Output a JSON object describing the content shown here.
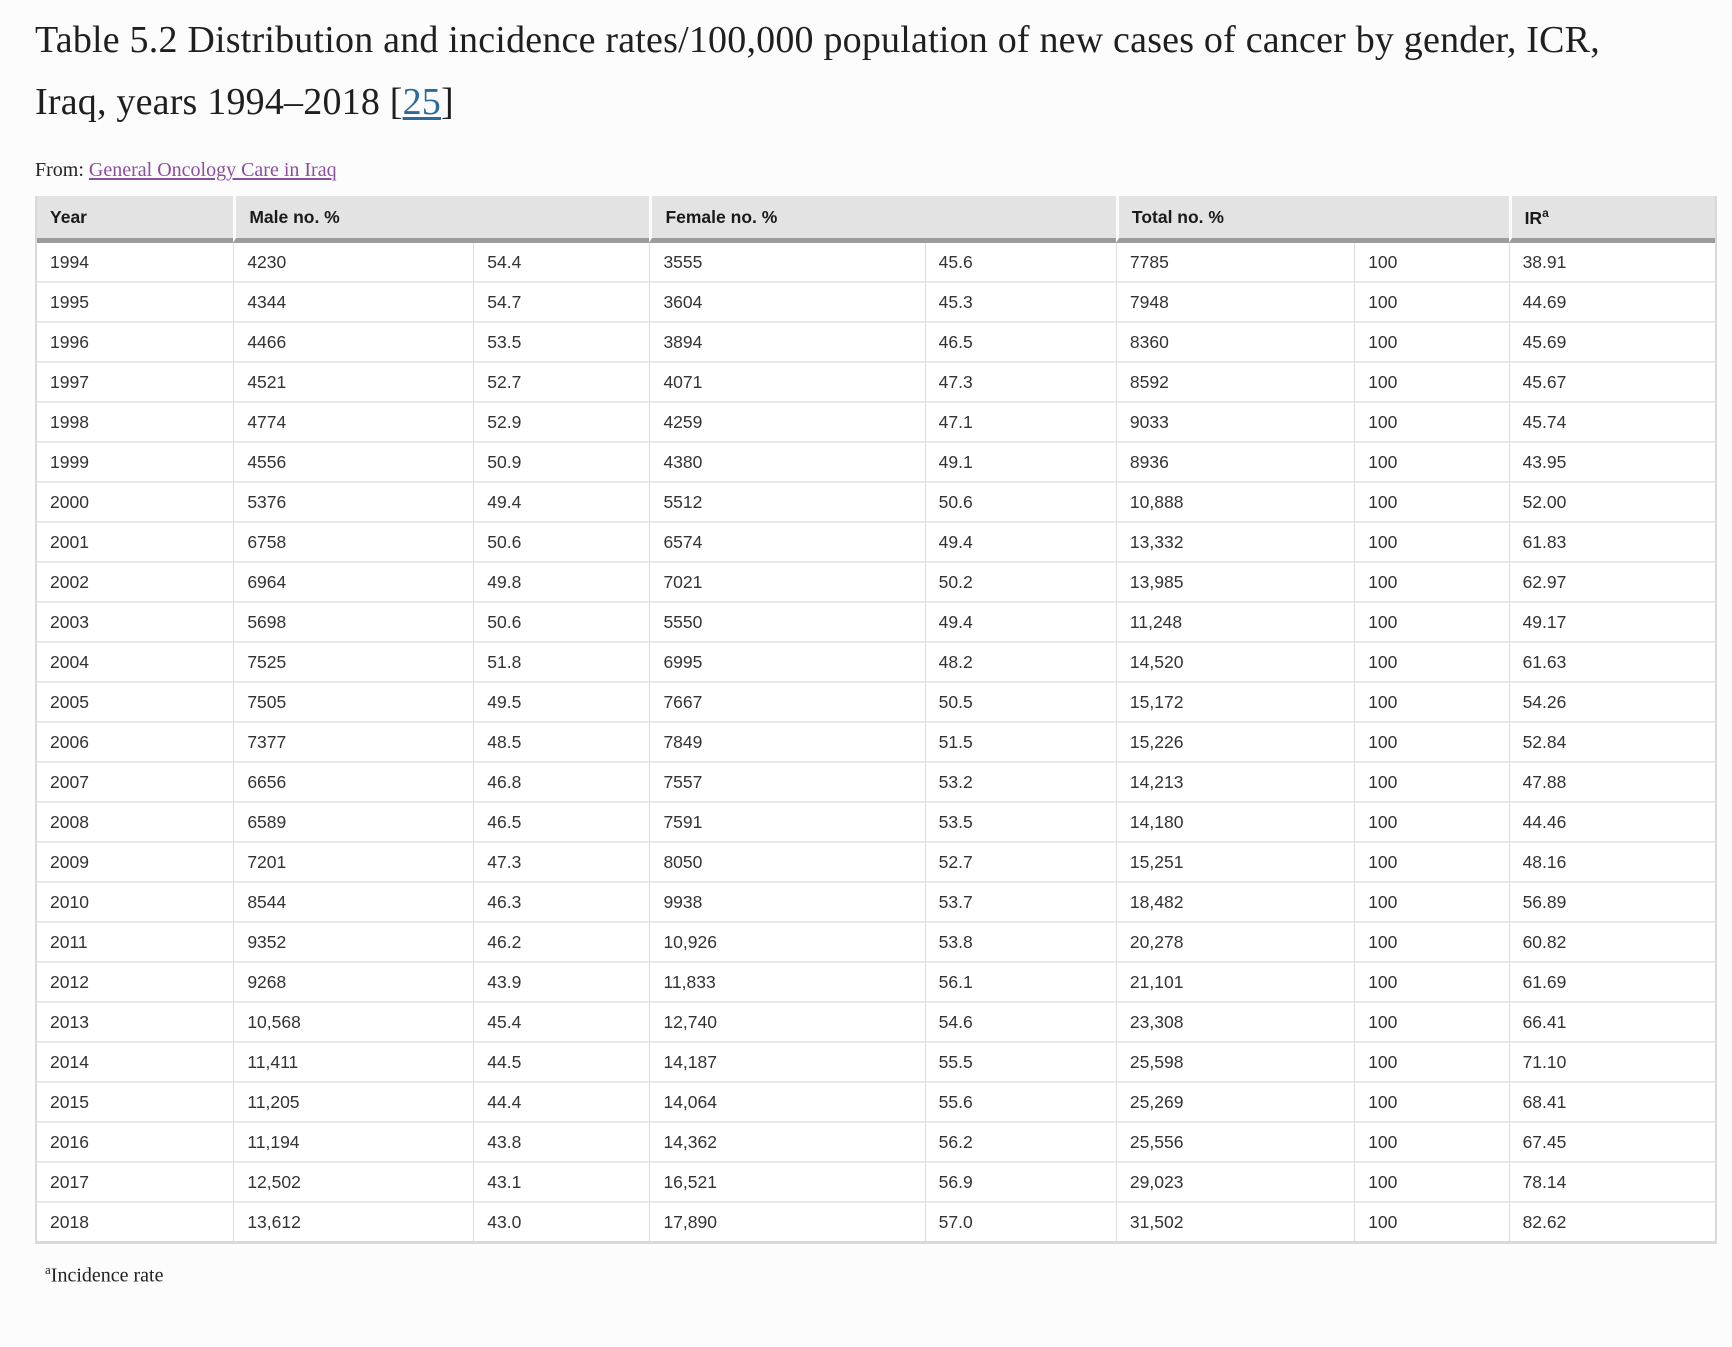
{
  "title": {
    "main": "Table 5.2 Distribution and incidence rates/100,000 population of new cases of cancer by gender, ICR, Iraq, years 1994–2018 ",
    "bracket_open": "[",
    "reference": "25",
    "bracket_close": "]"
  },
  "source": {
    "from_label": "From: ",
    "link_text": "General Oncology Care in Iraq"
  },
  "colors": {
    "reference_link": "#2a6a9c",
    "source_link": "#8b4d9e",
    "header_bg": "#e3e3e3",
    "header_rule": "#9c9c9c",
    "row_line": "#e8e8e8",
    "column_line": "#dcdcdc",
    "table_edge": "#d9d9d9"
  },
  "table": {
    "headers": {
      "year": "Year",
      "male": "Male no. %",
      "female": "Female no. %",
      "total": "Total no. %",
      "ir_base": "IR",
      "ir_sup": "a"
    },
    "column_keys": [
      "year",
      "male_no",
      "male_pct",
      "female_no",
      "female_pct",
      "total_no",
      "total_pct",
      "ir"
    ],
    "column_widths_pct": [
      11.7,
      14.3,
      10.5,
      16.4,
      11.4,
      14.2,
      9.2,
      12.3
    ],
    "rows": [
      [
        "1994",
        "4230",
        "54.4",
        "3555",
        "45.6",
        "7785",
        "100",
        "38.91"
      ],
      [
        "1995",
        "4344",
        "54.7",
        "3604",
        "45.3",
        "7948",
        "100",
        "44.69"
      ],
      [
        "1996",
        "4466",
        "53.5",
        "3894",
        "46.5",
        "8360",
        "100",
        "45.69"
      ],
      [
        "1997",
        "4521",
        "52.7",
        "4071",
        "47.3",
        "8592",
        "100",
        "45.67"
      ],
      [
        "1998",
        "4774",
        "52.9",
        "4259",
        "47.1",
        "9033",
        "100",
        "45.74"
      ],
      [
        "1999",
        "4556",
        "50.9",
        "4380",
        "49.1",
        "8936",
        "100",
        "43.95"
      ],
      [
        "2000",
        "5376",
        "49.4",
        "5512",
        "50.6",
        "10,888",
        "100",
        "52.00"
      ],
      [
        "2001",
        "6758",
        "50.6",
        "6574",
        "49.4",
        "13,332",
        "100",
        "61.83"
      ],
      [
        "2002",
        "6964",
        "49.8",
        "7021",
        "50.2",
        "13,985",
        "100",
        "62.97"
      ],
      [
        "2003",
        "5698",
        "50.6",
        "5550",
        "49.4",
        "11,248",
        "100",
        "49.17"
      ],
      [
        "2004",
        "7525",
        "51.8",
        "6995",
        "48.2",
        "14,520",
        "100",
        "61.63"
      ],
      [
        "2005",
        "7505",
        "49.5",
        "7667",
        "50.5",
        "15,172",
        "100",
        "54.26"
      ],
      [
        "2006",
        "7377",
        "48.5",
        "7849",
        "51.5",
        "15,226",
        "100",
        "52.84"
      ],
      [
        "2007",
        "6656",
        "46.8",
        "7557",
        "53.2",
        "14,213",
        "100",
        "47.88"
      ],
      [
        "2008",
        "6589",
        "46.5",
        "7591",
        "53.5",
        "14,180",
        "100",
        "44.46"
      ],
      [
        "2009",
        "7201",
        "47.3",
        "8050",
        "52.7",
        "15,251",
        "100",
        "48.16"
      ],
      [
        "2010",
        "8544",
        "46.3",
        "9938",
        "53.7",
        "18,482",
        "100",
        "56.89"
      ],
      [
        "2011",
        "9352",
        "46.2",
        "10,926",
        "53.8",
        "20,278",
        "100",
        "60.82"
      ],
      [
        "2012",
        "9268",
        "43.9",
        "11,833",
        "56.1",
        "21,101",
        "100",
        "61.69"
      ],
      [
        "2013",
        "10,568",
        "45.4",
        "12,740",
        "54.6",
        "23,308",
        "100",
        "66.41"
      ],
      [
        "2014",
        "11,411",
        "44.5",
        "14,187",
        "55.5",
        "25,598",
        "100",
        "71.10"
      ],
      [
        "2015",
        "11,205",
        "44.4",
        "14,064",
        "55.6",
        "25,269",
        "100",
        "68.41"
      ],
      [
        "2016",
        "11,194",
        "43.8",
        "14,362",
        "56.2",
        "25,556",
        "100",
        "67.45"
      ],
      [
        "2017",
        "12,502",
        "43.1",
        "16,521",
        "56.9",
        "29,023",
        "100",
        "78.14"
      ],
      [
        "2018",
        "13,612",
        "43.0",
        "17,890",
        "57.0",
        "31,502",
        "100",
        "82.62"
      ]
    ]
  },
  "footnote": {
    "sup": "a",
    "text": "Incidence rate"
  }
}
